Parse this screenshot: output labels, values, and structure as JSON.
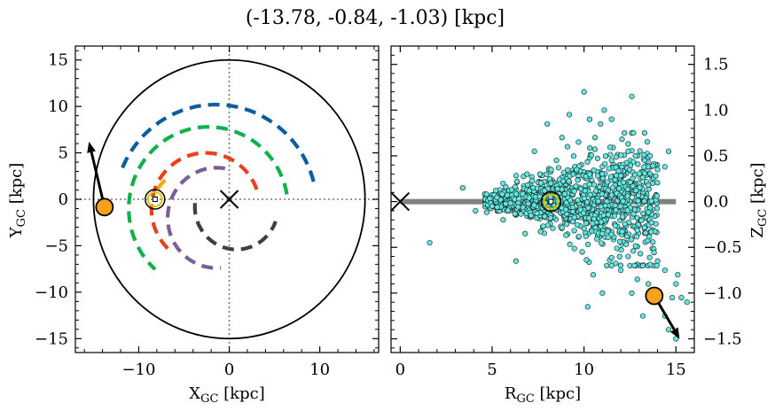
{
  "title": "(-13.78, -0.84, -1.03) [kpc]",
  "left_panel": {
    "xlabel": "X",
    "xlabel_sub": "GC",
    "xlabel_unit": " [kpc]",
    "ylabel": "Y",
    "ylabel_sub": "GC",
    "ylabel_unit": " [kpc]",
    "xticks": [
      "−10",
      "0",
      "10"
    ],
    "yticks": [
      "−15",
      "−10",
      "−5",
      "0",
      "5",
      "10",
      "15"
    ]
  },
  "right_panel": {
    "xlabel": "R",
    "xlabel_sub": "GC",
    "xlabel_unit": " [kpc]",
    "ylabel": "Z",
    "ylabel_sub": "GC",
    "ylabel_unit": " [kpc]",
    "xticks": [
      "0",
      "5",
      "10",
      "15"
    ],
    "yticks": [
      "−1.5",
      "−1.0",
      "−0.5",
      "0.0",
      "0.5",
      "1.0",
      "1.5"
    ]
  },
  "chart_data": [
    {
      "type": "scatter",
      "panel": "left",
      "xlim": [
        -17,
        16.5
      ],
      "ylim": [
        -16.5,
        16.5
      ],
      "x_ticks": [
        -10,
        0,
        10
      ],
      "y_ticks": [
        -15,
        -10,
        -5,
        0,
        5,
        10,
        15
      ],
      "grid": false,
      "boundary_circle_radius": 15,
      "galactic_center": [
        0,
        0
      ],
      "sun": [
        -8.2,
        0
      ],
      "object": {
        "x": -13.78,
        "y": -0.84
      },
      "velocity_arrow_end": [
        -15.5,
        6.2
      ],
      "spiral_arms": [
        {
          "color": "#0a5da2",
          "radius": 11.2,
          "center": [
            -1.5,
            -1
          ],
          "theta_deg": [
            15,
            160
          ]
        },
        {
          "color": "#10b04a",
          "radius": 8.8,
          "center": [
            -2.3,
            -1
          ],
          "theta_deg": [
            10,
            228
          ]
        },
        {
          "color": "#f7a800",
          "radius": 4.0,
          "center": [
            -4.5,
            -1
          ],
          "theta_deg": [
            130,
            160
          ]
        },
        {
          "color": "#e8411a",
          "radius": 6.0,
          "center": [
            -2.6,
            -1
          ],
          "theta_deg": [
            20,
            232
          ]
        },
        {
          "color": "#7b5e97",
          "radius": 5.4,
          "center": [
            -1.4,
            -2
          ],
          "theta_deg": [
            80,
            275
          ]
        },
        {
          "color": "#3f3f3f",
          "radius": 4.6,
          "center": [
            0.8,
            -0.8
          ],
          "theta_deg": [
            175,
            340
          ]
        }
      ]
    },
    {
      "type": "scatter",
      "panel": "right",
      "xlim": [
        -0.5,
        16
      ],
      "ylim": [
        -1.65,
        1.7
      ],
      "x_ticks": [
        0,
        5,
        10,
        15
      ],
      "y_ticks": [
        -1.5,
        -1.0,
        -0.5,
        0.0,
        0.5,
        1.0,
        1.5
      ],
      "grid": false,
      "point_color": "#5fe7e0",
      "point_edge": "#000000",
      "galactic_center": [
        0,
        0
      ],
      "sun": [
        8.2,
        0
      ],
      "object": {
        "x": 13.82,
        "y": -1.03
      },
      "velocity_arrow_end": [
        15.2,
        -1.5
      ],
      "disk_band": {
        "x": [
          0,
          15
        ],
        "y": 0
      },
      "points": [
        [
          1.6,
          -0.45
        ],
        [
          3.4,
          0.15
        ],
        [
          4.1,
          -0.1
        ],
        [
          4.7,
          0.08
        ],
        [
          5.0,
          -0.05
        ],
        [
          5.2,
          0.12
        ],
        [
          5.6,
          -0.2
        ],
        [
          6.3,
          -0.65
        ],
        [
          6.8,
          -0.35
        ],
        [
          6.9,
          0.3
        ],
        [
          7.3,
          0.55
        ],
        [
          7.6,
          0.3
        ],
        [
          8.0,
          0.85
        ],
        [
          8.2,
          0.2
        ],
        [
          8.8,
          0.7
        ],
        [
          9.1,
          0.6
        ],
        [
          9.2,
          0.95
        ],
        [
          9.7,
          0.65
        ],
        [
          10.0,
          1.2
        ],
        [
          10.3,
          0.9
        ],
        [
          10.6,
          0.7
        ],
        [
          10.9,
          0.85
        ],
        [
          11.1,
          1.0
        ],
        [
          11.5,
          0.9
        ],
        [
          12.2,
          0.75
        ],
        [
          12.4,
          0.55
        ],
        [
          12.8,
          0.5
        ],
        [
          13.3,
          0.45
        ],
        [
          13.6,
          0.5
        ],
        [
          14.0,
          0.35
        ],
        [
          14.4,
          0.38
        ],
        [
          9.9,
          -0.55
        ],
        [
          10.5,
          -0.8
        ],
        [
          11.0,
          -0.35
        ],
        [
          11.5,
          -0.7
        ],
        [
          12.0,
          -0.75
        ],
        [
          12.4,
          -0.6
        ],
        [
          12.9,
          -0.85
        ],
        [
          13.2,
          -0.7
        ],
        [
          13.5,
          -0.9
        ],
        [
          14.0,
          -0.65
        ],
        [
          14.4,
          -0.75
        ],
        [
          14.8,
          -1.05
        ],
        [
          15.0,
          -0.9
        ],
        [
          15.3,
          -1.05
        ],
        [
          15.6,
          -1.1
        ],
        [
          14.4,
          -1.25
        ],
        [
          15.0,
          -1.5
        ],
        [
          10.2,
          -1.15
        ],
        [
          11.0,
          -1.0
        ],
        [
          12.6,
          -1.0
        ],
        [
          13.2,
          -1.25
        ],
        [
          14.6,
          -1.4
        ],
        [
          15.1,
          -0.8
        ],
        [
          14.6,
          0.55
        ],
        [
          13.9,
          0.28
        ],
        [
          12.6,
          1.15
        ],
        [
          10.3,
          0.3
        ],
        [
          9.6,
          0.35
        ],
        [
          8.5,
          0.45
        ]
      ]
    }
  ]
}
